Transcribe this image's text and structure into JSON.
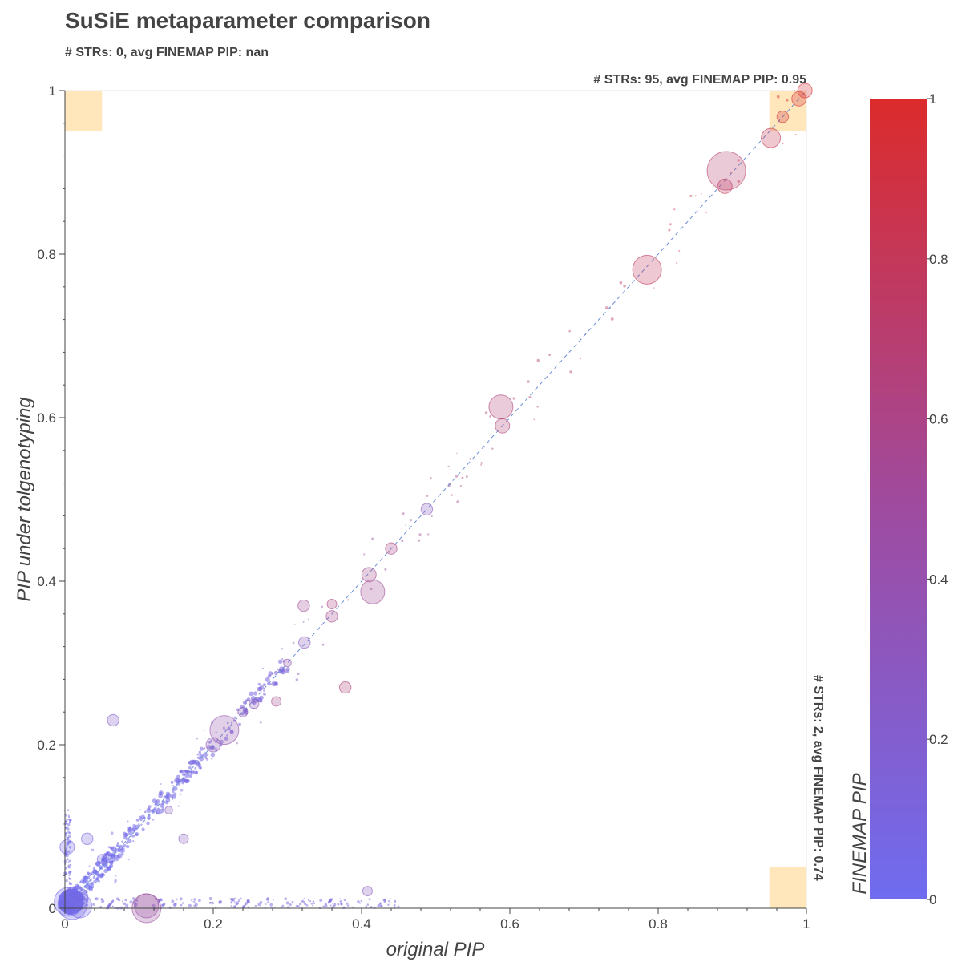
{
  "chart_data": {
    "type": "scatter",
    "title": "SuSiE metaparameter comparison",
    "subtitle": "# STRs: 0, avg FINEMAP PIP: nan",
    "annotations": {
      "top_right": "# STRs: 95, avg FINEMAP PIP: 0.95",
      "bottom_right": "# STRs: 2, avg FINEMAP PIP: 0.74"
    },
    "xlabel": "original PIP",
    "ylabel": "PIP under tolgenotyping",
    "xlim": [
      0,
      1
    ],
    "ylim": [
      0,
      1
    ],
    "x_ticks": [
      "0",
      "0.2",
      "0.4",
      "0.6",
      "0.8",
      "1"
    ],
    "y_ticks": [
      "0",
      "0.2",
      "0.4",
      "0.6",
      "0.8",
      "1"
    ],
    "colorbar": {
      "label": "FINEMAP PIP",
      "ticks": [
        "0",
        "0.2",
        "0.4",
        "0.6",
        "0.8",
        "1"
      ],
      "range": [
        0,
        1
      ],
      "low_color": "#6f6cf0",
      "high_color": "#dc2b2b"
    },
    "highlight_color": "#ffe6bb",
    "highlight_regions": [
      {
        "name": "top-left",
        "x": [
          0,
          0.05
        ],
        "y": [
          0.95,
          1
        ]
      },
      {
        "name": "top-right",
        "x": [
          0.95,
          1
        ],
        "y": [
          0.95,
          1
        ]
      },
      {
        "name": "bottom-right",
        "x": [
          0.95,
          1
        ],
        "y": [
          0,
          0.05
        ]
      }
    ],
    "identity_line": true,
    "grid": false,
    "points": [
      [
        0.005,
        0.008,
        0.05,
        3
      ],
      [
        0.01,
        0.004,
        0.05,
        3
      ],
      [
        0.015,
        0.012,
        0.06,
        2.5
      ],
      [
        0.02,
        0.003,
        0.05,
        2.5
      ],
      [
        0.11,
        0.003,
        0.4,
        2.5
      ],
      [
        0.11,
        0.0,
        0.4,
        3
      ],
      [
        0.003,
        0.075,
        0.05,
        1.5
      ],
      [
        0.03,
        0.085,
        0.08,
        1.2
      ],
      [
        0.05,
        0.06,
        0.08,
        1
      ],
      [
        0.065,
        0.23,
        0.2,
        1.2
      ],
      [
        0.14,
        0.12,
        0.25,
        0.8
      ],
      [
        0.16,
        0.085,
        0.25,
        1
      ],
      [
        0.215,
        0.218,
        0.35,
        3
      ],
      [
        0.2,
        0.2,
        0.3,
        1.5
      ],
      [
        0.24,
        0.24,
        0.3,
        1
      ],
      [
        0.255,
        0.25,
        0.3,
        1
      ],
      [
        0.285,
        0.253,
        0.5,
        1
      ],
      [
        0.3,
        0.3,
        0.35,
        0.8
      ],
      [
        0.323,
        0.325,
        0.25,
        1.2
      ],
      [
        0.322,
        0.37,
        0.45,
        1.2
      ],
      [
        0.36,
        0.357,
        0.5,
        1.2
      ],
      [
        0.36,
        0.372,
        0.55,
        1
      ],
      [
        0.378,
        0.27,
        0.6,
        1.2
      ],
      [
        0.41,
        0.408,
        0.5,
        1.5
      ],
      [
        0.415,
        0.387,
        0.45,
        2.5
      ],
      [
        0.44,
        0.44,
        0.55,
        1.2
      ],
      [
        0.408,
        0.021,
        0.25,
        1
      ],
      [
        0.488,
        0.488,
        0.25,
        1.2
      ],
      [
        0.588,
        0.613,
        0.6,
        2.5
      ],
      [
        0.59,
        0.59,
        0.6,
        1.5
      ],
      [
        0.785,
        0.781,
        0.75,
        3
      ],
      [
        0.892,
        0.902,
        0.65,
        4
      ],
      [
        0.89,
        0.883,
        0.75,
        1.5
      ],
      [
        0.952,
        0.942,
        0.8,
        2
      ],
      [
        0.968,
        0.968,
        0.9,
        1.2
      ],
      [
        0.99,
        0.99,
        0.95,
        1.5
      ],
      [
        0.998,
        1.0,
        0.95,
        1.5
      ]
    ]
  }
}
